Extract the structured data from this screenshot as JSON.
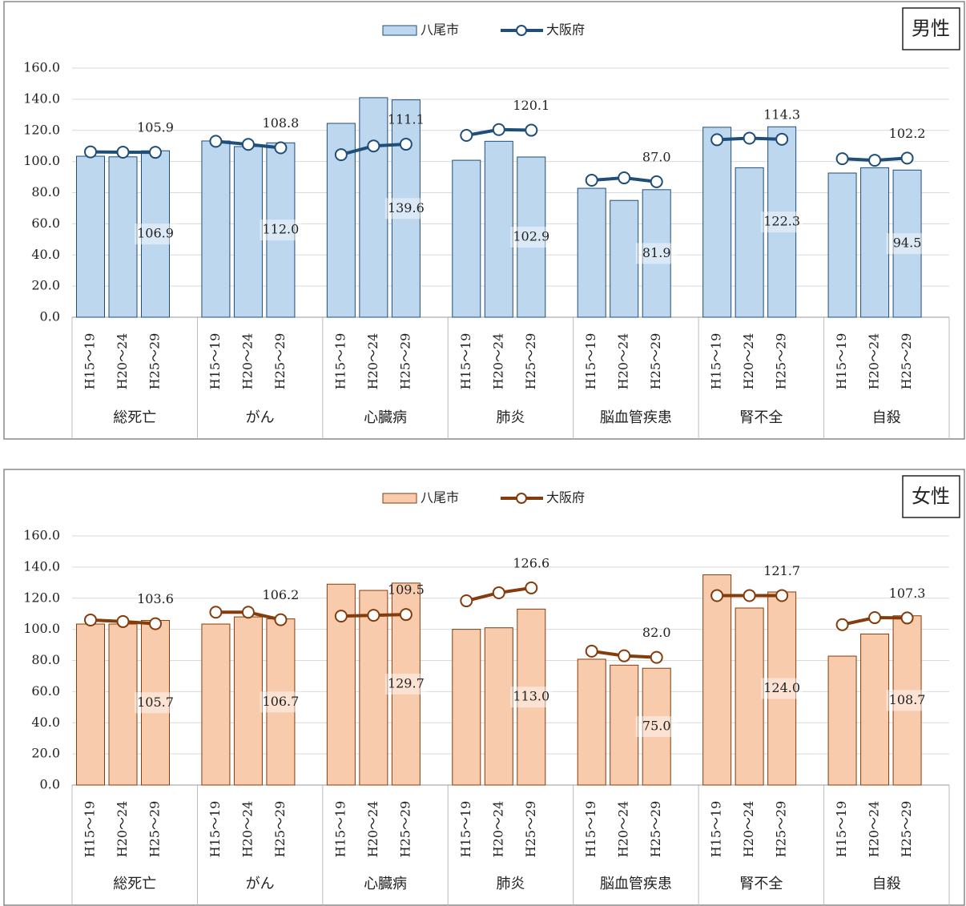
{
  "chart_data": [
    {
      "type": "combo",
      "title": "男性",
      "groups": [
        {
          "name": "総死亡",
          "categories": [
            "H15～19",
            "H20～24",
            "H25～29"
          ]
        },
        {
          "name": "がん",
          "categories": [
            "H15～19",
            "H20～24",
            "H25～29"
          ]
        },
        {
          "name": "心臓病",
          "categories": [
            "H15～19",
            "H20～24",
            "H25～29"
          ]
        },
        {
          "name": "肺炎",
          "categories": [
            "H15～19",
            "H20～24",
            "H25～29"
          ]
        },
        {
          "name": "脳血管疾患",
          "categories": [
            "H15～19",
            "H20～24",
            "H25～29"
          ]
        },
        {
          "name": "腎不全",
          "categories": [
            "H15～19",
            "H20～24",
            "H25～29"
          ]
        },
        {
          "name": "自殺",
          "categories": [
            "H15～19",
            "H20～24",
            "H25～29"
          ]
        }
      ],
      "series": [
        {
          "name": "八尾市",
          "type": "bar",
          "color": "#bdd7ee",
          "edge_color": "#1f4e79",
          "values": [
            103.4,
            103.0,
            106.9,
            113.2,
            109.6,
            112.0,
            124.5,
            141.0,
            139.6,
            100.8,
            113.0,
            102.9,
            82.8,
            75.0,
            81.9,
            122.0,
            96.0,
            122.3,
            92.6,
            96.0,
            94.5
          ],
          "value_labels": [
            null,
            null,
            "106.9",
            null,
            null,
            "112.0",
            null,
            null,
            "139.6",
            null,
            null,
            "102.9",
            null,
            null,
            "81.9",
            null,
            null,
            "122.3",
            null,
            null,
            "94.5"
          ]
        },
        {
          "name": "大阪府",
          "type": "line",
          "color": "#1f4e79",
          "values": [
            106.2,
            106.0,
            105.9,
            113.0,
            111.0,
            108.8,
            104.4,
            110.0,
            111.1,
            116.8,
            120.5,
            120.1,
            88.0,
            89.5,
            87.0,
            114.0,
            115.0,
            114.3,
            101.8,
            100.8,
            102.2
          ],
          "value_labels": [
            null,
            null,
            "105.9",
            null,
            null,
            "108.8",
            null,
            null,
            "111.1",
            null,
            null,
            "120.1",
            null,
            null,
            "87.0",
            null,
            null,
            "114.3",
            null,
            null,
            "102.2"
          ]
        }
      ],
      "ylim": [
        0,
        160
      ],
      "yticks": [
        {
          "value": 0,
          "label": "0.0"
        },
        {
          "value": 20,
          "label": "20.0"
        },
        {
          "value": 40,
          "label": "40.0"
        },
        {
          "value": 60,
          "label": "60.0"
        },
        {
          "value": 80,
          "label": "80.0"
        },
        {
          "value": 100,
          "label": "100.0"
        },
        {
          "value": 120,
          "label": "120.0"
        },
        {
          "value": 140,
          "label": "140.0"
        },
        {
          "value": 160,
          "label": "160.0"
        }
      ],
      "grid": true,
      "legend": "top"
    },
    {
      "type": "combo",
      "title": "女性",
      "groups": [
        {
          "name": "総死亡",
          "categories": [
            "H15～19",
            "H20～24",
            "H25～29"
          ]
        },
        {
          "name": "がん",
          "categories": [
            "H15～19",
            "H20～24",
            "H25～29"
          ]
        },
        {
          "name": "心臓病",
          "categories": [
            "H15～19",
            "H20～24",
            "H25～29"
          ]
        },
        {
          "name": "肺炎",
          "categories": [
            "H15～19",
            "H20～24",
            "H25～29"
          ]
        },
        {
          "name": "脳血管疾患",
          "categories": [
            "H15～19",
            "H20～24",
            "H25～29"
          ]
        },
        {
          "name": "腎不全",
          "categories": [
            "H15～19",
            "H20～24",
            "H25～29"
          ]
        },
        {
          "name": "自殺",
          "categories": [
            "H15～19",
            "H20～24",
            "H25～29"
          ]
        }
      ],
      "series": [
        {
          "name": "八尾市",
          "type": "bar",
          "color": "#f8cbad",
          "edge_color": "#843c0c",
          "values": [
            103.4,
            103.4,
            105.7,
            103.4,
            108.0,
            106.7,
            129.0,
            125.0,
            129.7,
            100.0,
            101.0,
            113.0,
            80.8,
            77.0,
            75.0,
            135.0,
            113.7,
            124.0,
            82.8,
            97.0,
            108.7
          ],
          "value_labels": [
            null,
            null,
            "105.7",
            null,
            null,
            "106.7",
            null,
            null,
            "129.7",
            null,
            null,
            "113.0",
            null,
            null,
            "75.0",
            null,
            null,
            "124.0",
            null,
            null,
            "108.7"
          ]
        },
        {
          "name": "大阪府",
          "type": "line",
          "color": "#843c0c",
          "values": [
            106.0,
            105.0,
            103.6,
            111.0,
            111.0,
            106.2,
            108.5,
            109.0,
            109.5,
            118.3,
            123.5,
            126.6,
            86.0,
            83.0,
            82.0,
            121.7,
            121.7,
            121.7,
            103.0,
            107.5,
            107.3
          ],
          "value_labels": [
            null,
            null,
            "103.6",
            null,
            null,
            "106.2",
            null,
            null,
            "109.5",
            null,
            null,
            "126.6",
            null,
            null,
            "82.0",
            null,
            null,
            "121.7",
            null,
            null,
            "107.3"
          ]
        }
      ],
      "ylim": [
        0,
        160
      ],
      "yticks": [
        {
          "value": 0,
          "label": "0.0"
        },
        {
          "value": 20,
          "label": "20.0"
        },
        {
          "value": 40,
          "label": "40.0"
        },
        {
          "value": 60,
          "label": "60.0"
        },
        {
          "value": 80,
          "label": "80.0"
        },
        {
          "value": 100,
          "label": "100.0"
        },
        {
          "value": 120,
          "label": "120.0"
        },
        {
          "value": 140,
          "label": "140.0"
        },
        {
          "value": 160,
          "label": "160.0"
        }
      ],
      "grid": true,
      "legend": "top"
    }
  ]
}
